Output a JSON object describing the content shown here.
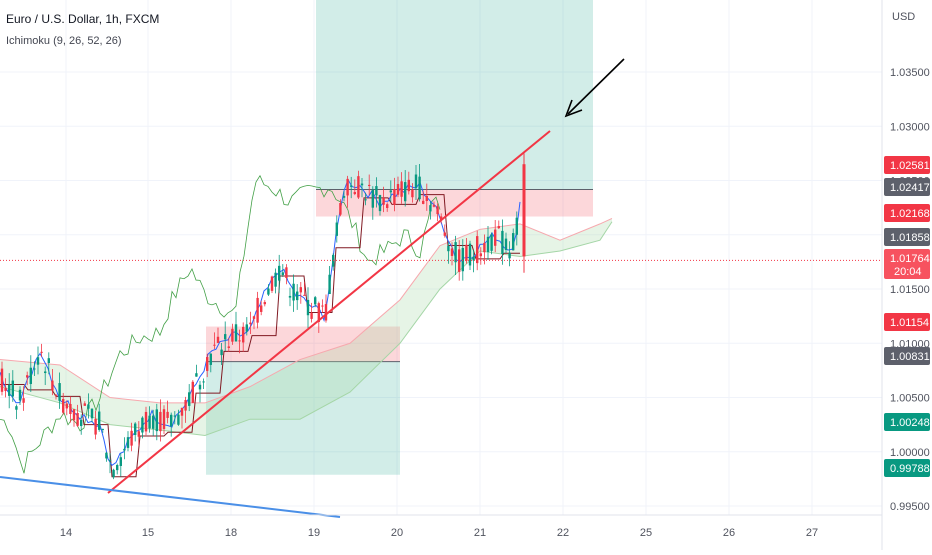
{
  "header": {
    "title": "Euro / U.S. Dollar, 1h, FXCM",
    "indicator": "Ichimoku (9, 26, 52, 26)"
  },
  "price_axis": {
    "currency": "USD",
    "ticks": [
      "1.03500",
      "1.03000",
      "1.02500",
      "1.02000",
      "1.01500",
      "1.01000",
      "1.00500",
      "1.00000",
      "0.99500"
    ]
  },
  "time_axis": {
    "ticks": [
      "14",
      "15",
      "18",
      "19",
      "20",
      "21",
      "22",
      "25",
      "26",
      "27"
    ]
  },
  "price_badges": [
    {
      "label": "1.02581",
      "color": "#f23645"
    },
    {
      "label": "1.02417",
      "color": "#5d606b"
    },
    {
      "label": "1.02168",
      "color": "#f23645"
    },
    {
      "label": "1.01858",
      "color": "#5d606b"
    },
    {
      "label": "1.01764",
      "sublabel": "20:04",
      "color": "#f7525f"
    },
    {
      "label": "1.01154",
      "color": "#f23645"
    },
    {
      "label": "1.00831",
      "color": "#5d606b"
    },
    {
      "label": "1.00248",
      "color": "#089981"
    },
    {
      "label": "0.99788",
      "color": "#089981"
    }
  ],
  "colors": {
    "up": "#089981",
    "down": "#f23645",
    "tenkan": "#2962ff",
    "kijun": "#801922",
    "chikou": "#43a047",
    "trend_up": "#f23645",
    "trend_down": "#4a8fe7",
    "arrow": "#000000"
  },
  "chart_data": {
    "type": "candlestick",
    "symbol": "EURUSD",
    "interval": "1h",
    "ylim": [
      0.9933,
      1.04
    ],
    "last_price": 1.01764,
    "countdown": "20:04",
    "annotations": {
      "long_position_1": {
        "entry_zone": [
          1.00831,
          1.01154
        ],
        "stop": 1.00831,
        "target_lower": 0.99788
      },
      "long_position_2": {
        "entry_zone": [
          1.02168,
          1.02417
        ],
        "stop": 1.02168,
        "target_upper": 1.04
      }
    }
  }
}
